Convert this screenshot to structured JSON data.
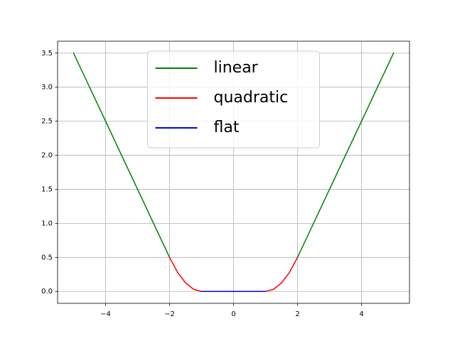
{
  "chart_data": {
    "type": "line",
    "series": [
      {
        "name": "linear",
        "color": "#008000",
        "x": [
          -5,
          -2,
          0,
          2,
          5
        ],
        "values": [
          3.5,
          0.5,
          null,
          0.5,
          3.5
        ]
      },
      {
        "name": "quadratic",
        "color": "#ff0000",
        "x": [
          -2,
          -1.75,
          -1.5,
          -1.25,
          -1,
          0,
          1,
          1.25,
          1.5,
          1.75,
          2
        ],
        "values": [
          0.5,
          0.28125,
          0.125,
          0.03125,
          0,
          null,
          0,
          0.03125,
          0.125,
          0.28125,
          0.5
        ]
      },
      {
        "name": "flat",
        "color": "#0000ff",
        "x": [
          -1,
          1
        ],
        "values": [
          0,
          0
        ]
      }
    ],
    "xlim": [
      -5.5,
      5.5
    ],
    "xticks": [
      {
        "value": -4,
        "label": "−4"
      },
      {
        "value": -2,
        "label": "−2"
      },
      0,
      2,
      4
    ],
    "ylim": [
      -0.175,
      3.675
    ],
    "yticks": [
      {
        "value": 0,
        "label": "0.0"
      },
      0.5,
      {
        "value": 1,
        "label": "1.0"
      },
      1.5,
      {
        "value": 2,
        "label": "2.0"
      },
      2.5,
      {
        "value": 3,
        "label": "3.0"
      },
      3.5
    ],
    "grid": true,
    "legend": "upper center"
  }
}
